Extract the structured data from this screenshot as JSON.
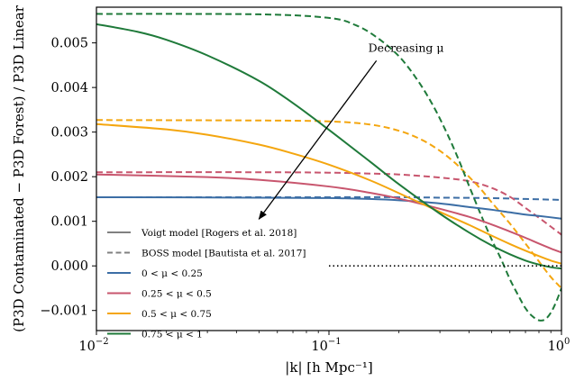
{
  "chart_data": {
    "type": "line",
    "xscale": "log",
    "xlim": [
      0.01,
      1
    ],
    "ylim": [
      -0.00145,
      0.0058
    ],
    "xlabel": "|k| [h Mpc⁻¹]",
    "ylabel": "(P3D Contaminated − P3D Forest) / P3D Linear",
    "x_ticks": [
      {
        "value": 0.01,
        "base": "10",
        "exp": "−2"
      },
      {
        "value": 0.1,
        "base": "10",
        "exp": "−1"
      },
      {
        "value": 1,
        "base": "10",
        "exp": "0"
      }
    ],
    "y_ticks": [
      {
        "value": -0.001,
        "label": "−0.001"
      },
      {
        "value": 0.0,
        "label": "0.000"
      },
      {
        "value": 0.001,
        "label": "0.001"
      },
      {
        "value": 0.002,
        "label": "0.002"
      },
      {
        "value": 0.003,
        "label": "0.003"
      },
      {
        "value": 0.004,
        "label": "0.004"
      },
      {
        "value": 0.005,
        "label": "0.005"
      }
    ],
    "zero_line": {
      "from_x": 0.1,
      "to_x": 1,
      "y": 0.0
    },
    "annotation": {
      "text": "Decreasing μ",
      "arrow_from": {
        "x": 0.16,
        "y": 0.0046
      },
      "arrow_to": {
        "x": 0.05,
        "y": 0.00105
      }
    },
    "legend": {
      "placement": "lower-left",
      "entries": [
        {
          "label": "Voigt model [Rogers et al. 2018]",
          "style": "solid",
          "color": "#808080"
        },
        {
          "label": "BOSS model [Bautista et al. 2017]",
          "style": "dashed",
          "color": "#808080"
        },
        {
          "label": "0 < μ < 0.25",
          "style": "solid",
          "color": "#3c6ea5"
        },
        {
          "label": "0.25 < μ < 0.5",
          "style": "solid",
          "color": "#c8566e"
        },
        {
          "label": "0.5 < μ < 0.75",
          "style": "solid",
          "color": "#f4a60f"
        },
        {
          "label": "0.75 < μ < 1",
          "style": "solid",
          "color": "#1f7a3a"
        }
      ]
    },
    "series": [
      {
        "model": "BOSS",
        "mu_bin": 0,
        "style": "dashed",
        "color": "#3c6ea5",
        "x": [
          0.01,
          0.05,
          0.1,
          0.2,
          0.3,
          0.5,
          0.7,
          1.0
        ],
        "y": [
          0.00154,
          0.00154,
          0.00154,
          0.00154,
          0.00153,
          0.00152,
          0.0015,
          0.00148
        ]
      },
      {
        "model": "BOSS",
        "mu_bin": 1,
        "style": "dashed",
        "color": "#c8566e",
        "x": [
          0.01,
          0.05,
          0.1,
          0.15,
          0.2,
          0.3,
          0.4,
          0.5,
          0.6,
          0.7,
          0.8,
          0.9,
          1.0
        ],
        "y": [
          0.0021,
          0.0021,
          0.00209,
          0.00207,
          0.00205,
          0.00198,
          0.0019,
          0.00175,
          0.00155,
          0.0013,
          0.00108,
          0.00088,
          0.0007
        ]
      },
      {
        "model": "BOSS",
        "mu_bin": 2,
        "style": "dashed",
        "color": "#f4a60f",
        "x": [
          0.01,
          0.05,
          0.1,
          0.15,
          0.2,
          0.25,
          0.3,
          0.35,
          0.4,
          0.45,
          0.5,
          0.6,
          0.7,
          0.8,
          0.9,
          1.0
        ],
        "y": [
          0.00327,
          0.00326,
          0.00324,
          0.00317,
          0.00303,
          0.00283,
          0.00258,
          0.0023,
          0.002,
          0.00172,
          0.00143,
          0.00095,
          0.0005,
          0.0001,
          -0.00025,
          -0.0005
        ]
      },
      {
        "model": "BOSS",
        "mu_bin": 3,
        "style": "dashed",
        "color": "#1f7a3a",
        "x": [
          0.01,
          0.05,
          0.1,
          0.13,
          0.16,
          0.2,
          0.24,
          0.28,
          0.32,
          0.36,
          0.4,
          0.45,
          0.5,
          0.55,
          0.6,
          0.65,
          0.7,
          0.75,
          0.8,
          0.85,
          0.9,
          0.95,
          1.0
        ],
        "y": [
          0.00565,
          0.00564,
          0.00556,
          0.0054,
          0.00513,
          0.0047,
          0.00417,
          0.0036,
          0.003,
          0.0024,
          0.0018,
          0.00115,
          0.0006,
          0.00015,
          -0.0003,
          -0.00065,
          -0.00095,
          -0.00113,
          -0.00122,
          -0.0012,
          -0.00105,
          -0.0008,
          -0.0005
        ]
      },
      {
        "model": "Voigt",
        "mu_bin": 0,
        "style": "solid",
        "color": "#3c6ea5",
        "x": [
          0.01,
          0.05,
          0.1,
          0.15,
          0.2,
          0.3,
          0.4,
          0.5,
          0.6,
          0.7,
          0.8,
          1.0
        ],
        "y": [
          0.00154,
          0.00153,
          0.00152,
          0.0015,
          0.00147,
          0.0014,
          0.00132,
          0.00126,
          0.0012,
          0.00115,
          0.00112,
          0.00106
        ]
      },
      {
        "model": "Voigt",
        "mu_bin": 1,
        "style": "solid",
        "color": "#c8566e",
        "x": [
          0.01,
          0.03,
          0.05,
          0.1,
          0.15,
          0.2,
          0.3,
          0.4,
          0.5,
          0.6,
          0.7,
          0.8,
          0.9,
          1.0
        ],
        "y": [
          0.00205,
          0.00199,
          0.00193,
          0.00178,
          0.00164,
          0.00151,
          0.00128,
          0.0011,
          0.00093,
          0.00077,
          0.00063,
          0.0005,
          0.00039,
          0.0003
        ]
      },
      {
        "model": "Voigt",
        "mu_bin": 2,
        "style": "solid",
        "color": "#f4a60f",
        "x": [
          0.01,
          0.02,
          0.03,
          0.05,
          0.07,
          0.1,
          0.15,
          0.2,
          0.3,
          0.4,
          0.5,
          0.6,
          0.7,
          0.8,
          0.9,
          1.0
        ],
        "y": [
          0.00318,
          0.00306,
          0.00294,
          0.00272,
          0.00252,
          0.00227,
          0.00192,
          0.00163,
          0.00121,
          0.00092,
          0.00068,
          0.00049,
          0.00034,
          0.00022,
          0.00012,
          5e-05
        ]
      },
      {
        "model": "Voigt",
        "mu_bin": 3,
        "style": "solid",
        "color": "#1f7a3a",
        "x": [
          0.01,
          0.015,
          0.02,
          0.03,
          0.05,
          0.07,
          0.1,
          0.15,
          0.2,
          0.3,
          0.4,
          0.5,
          0.6,
          0.7,
          0.8,
          0.9,
          1.0
        ],
        "y": [
          0.00542,
          0.00525,
          0.00507,
          0.00472,
          0.00415,
          0.00365,
          0.00305,
          0.00234,
          0.00183,
          0.00117,
          0.00075,
          0.00046,
          0.00026,
          0.00012,
          3e-05,
          -3e-05,
          -6e-05
        ]
      }
    ]
  }
}
